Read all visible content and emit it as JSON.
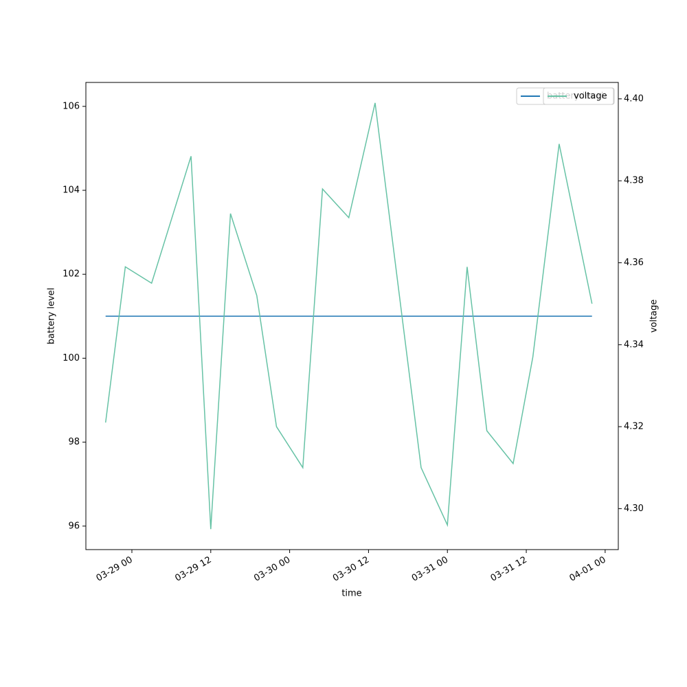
{
  "chart_data": {
    "type": "line",
    "x_label": "time",
    "y_label": "battery level",
    "y2_label": "voltage",
    "x": [
      "03-28 20",
      "03-28 23",
      "03-29 03",
      "03-29 09",
      "03-29 12",
      "03-29 15",
      "03-29 19",
      "03-29 22",
      "03-30 02",
      "03-30 05",
      "03-30 09",
      "03-30 13",
      "03-30 20",
      "03-31 00",
      "03-31 03",
      "03-31 06",
      "03-31 10",
      "03-31 13",
      "03-31 17",
      "03-31 22"
    ],
    "series": [
      {
        "name": "battery level",
        "color": "#1f77b4",
        "values": [
          101,
          101,
          101,
          101,
          101,
          101,
          101,
          101,
          101,
          101,
          101,
          101,
          101,
          101,
          101,
          101,
          101,
          101,
          101,
          101
        ]
      },
      {
        "name": "voltage",
        "color": "#66c2a5",
        "axis": "y2",
        "values": [
          4.321,
          4.359,
          4.355,
          4.386,
          4.295,
          4.372,
          4.352,
          4.32,
          4.31,
          4.378,
          4.371,
          4.399,
          4.31,
          4.296,
          4.359,
          4.319,
          4.311,
          4.337,
          4.389,
          4.35
        ]
      }
    ],
    "xlim": [
      "03-28 17",
      "04-01 02"
    ],
    "xticks": [
      "03-29 00",
      "03-29 12",
      "03-30 00",
      "03-30 12",
      "03-31 00",
      "03-31 12",
      "04-01 00"
    ],
    "ylim": [
      95.44,
      106.57
    ],
    "yticks": [
      96,
      98,
      100,
      102,
      104,
      106
    ],
    "y2lim": [
      4.29,
      4.404
    ],
    "y2ticks": [
      {
        "value": 4.3,
        "label": "4.30"
      },
      {
        "value": 4.32,
        "label": "4.32"
      },
      {
        "value": 4.34,
        "label": "4.34"
      },
      {
        "value": 4.36,
        "label": "4.36"
      },
      {
        "value": 4.38,
        "label": "4.38"
      },
      {
        "value": 4.4,
        "label": "4.40"
      }
    ],
    "legend": "upper right"
  }
}
